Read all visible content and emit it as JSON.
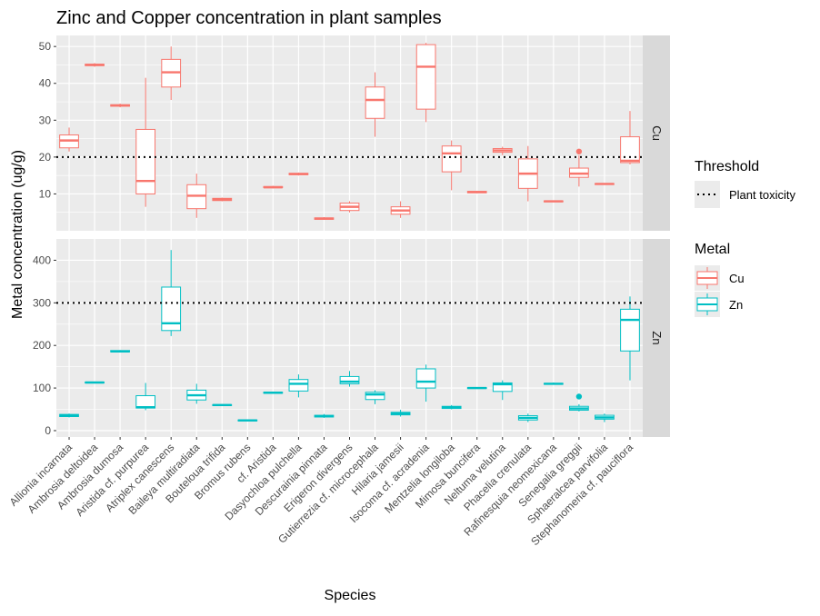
{
  "chart_data": {
    "type": "boxplot",
    "title": "Zinc and Copper concentration in plant samples",
    "xlabel": "Species",
    "ylabel": "Metal concentration (ug/g)",
    "colors": {
      "Cu": "#F8766D",
      "Zn": "#00BFC4",
      "panel_bg": "#EBEBEB",
      "strip_bg": "#D9D9D9",
      "threshold": "#000000"
    },
    "categories": [
      "Allionia incarnata",
      "Ambrosia deltoidea",
      "Ambrosia dumosa",
      "Aristida cf. purpurea",
      "Atriplex canescens",
      "Baileya multiradiata",
      "Bouteloua trifida",
      "Bromus rubens",
      "cf. Aristida",
      "Dasyochloa pulchella",
      "Descurainia pinnata",
      "Erigeron divergens",
      "Gutierrezia cf. microcephala",
      "Hilaria jamesii",
      "Isocoma cf. acradenia",
      "Mentzelia longiloba",
      "Mimosa buncifera",
      "Neltuma velutina",
      "Phacelia crenulata",
      "Rafinesquia neomexicana",
      "Senegalia greggii",
      "Sphaeralcea parvifolia",
      "Stephanomeria cf. pauciflora"
    ],
    "legend": {
      "threshold_title": "Threshold",
      "threshold_label": "Plant toxicity",
      "metal_title": "Metal",
      "metal_labels": [
        "Cu",
        "Zn"
      ],
      "placement": "right"
    },
    "panels": [
      {
        "strip_label": "Cu",
        "metal": "Cu",
        "ylim": [
          0,
          53
        ],
        "yticks": [
          10,
          20,
          30,
          40,
          50
        ],
        "threshold": 20,
        "boxes": [
          [
            21.5,
            22.5,
            24.5,
            26,
            28
          ],
          [
            44.5,
            44.8,
            45,
            45.2,
            45.5
          ],
          [
            33.5,
            33.8,
            34,
            34.2,
            34.5
          ],
          [
            6.5,
            10,
            13.5,
            27.5,
            41.5
          ],
          [
            35.5,
            39,
            43,
            46.5,
            50
          ],
          [
            3.5,
            6,
            9.5,
            12.5,
            15.5
          ],
          [
            8,
            8.2,
            8.5,
            8.8,
            9
          ],
          [
            11.5,
            11.7,
            11.8,
            12,
            12.2
          ],
          [
            15,
            15.2,
            15.4,
            15.6,
            15.8
          ],
          [
            3,
            3.1,
            3.3,
            3.5,
            3.7
          ],
          [
            5,
            5.5,
            6.5,
            7.5,
            8
          ],
          [
            25.5,
            30.5,
            35.5,
            39,
            43
          ],
          [
            3.5,
            4.5,
            5.5,
            6.5,
            8
          ],
          [
            29.5,
            33,
            44.5,
            50.5,
            51
          ],
          [
            11,
            16,
            21,
            23,
            24.5
          ],
          [
            10.2,
            10.3,
            10.5,
            10.7,
            10.8
          ],
          [
            20.5,
            21.3,
            21.8,
            22.3,
            22.8
          ],
          [
            8,
            11.5,
            15.5,
            19.5,
            23
          ],
          [
            7.8,
            7.9,
            8,
            8.1,
            8.2
          ],
          [
            12,
            14.5,
            15.5,
            17,
            20.5
          ],
          [
            12.5,
            12.6,
            12.7,
            12.8,
            12.9
          ],
          [
            18,
            18.5,
            19,
            25.5,
            32.5
          ]
        ],
        "box_categories": [
          0,
          1,
          2,
          3,
          4,
          5,
          6,
          8,
          9,
          10,
          11,
          12,
          13,
          14,
          15,
          16,
          17,
          18,
          19,
          20,
          21,
          22
        ],
        "outliers": [
          {
            "category": 20,
            "value": 21.5
          }
        ]
      },
      {
        "strip_label": "Zn",
        "metal": "Zn",
        "ylim": [
          -15,
          450
        ],
        "yticks": [
          0,
          100,
          200,
          300,
          400
        ],
        "threshold": 300,
        "boxes": [
          [
            31,
            33,
            36,
            38,
            40
          ],
          [
            111,
            112,
            113,
            114,
            115
          ],
          [
            184,
            185,
            186,
            188,
            189
          ],
          [
            48,
            53,
            55,
            82,
            112
          ],
          [
            222,
            235,
            252,
            337,
            424
          ],
          [
            63,
            72,
            83,
            95,
            110
          ],
          [
            58,
            59,
            60,
            61,
            62
          ],
          [
            22,
            23,
            24,
            25,
            26
          ],
          [
            87,
            88,
            89,
            90,
            91
          ],
          [
            78,
            93,
            110,
            120,
            132
          ],
          [
            30,
            32,
            34,
            36,
            39
          ],
          [
            103,
            110,
            115,
            127,
            140
          ],
          [
            62,
            73,
            85,
            90,
            95
          ],
          [
            33,
            37,
            40,
            43,
            49
          ],
          [
            68,
            100,
            115,
            145,
            155
          ],
          [
            50,
            52,
            55,
            57,
            60
          ],
          [
            98,
            99,
            100,
            101,
            102
          ],
          [
            72,
            92,
            109,
            112,
            118
          ],
          [
            20,
            25,
            30,
            35,
            40
          ],
          [
            108,
            109,
            110,
            111,
            113
          ],
          [
            45,
            48,
            52,
            57,
            62
          ],
          [
            20,
            27,
            31,
            36,
            40
          ],
          [
            118,
            187,
            260,
            285,
            315
          ]
        ],
        "box_categories": [
          0,
          1,
          2,
          3,
          4,
          5,
          6,
          7,
          8,
          9,
          10,
          11,
          12,
          13,
          14,
          15,
          16,
          17,
          18,
          19,
          20,
          21,
          22
        ],
        "outliers": [
          {
            "category": 20,
            "value": 80
          }
        ]
      }
    ]
  }
}
